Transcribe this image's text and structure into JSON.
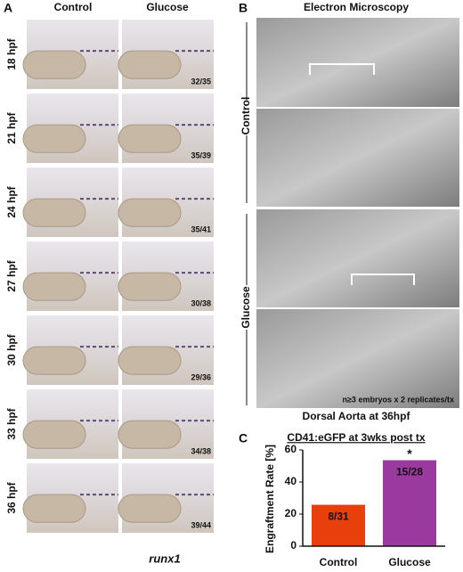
{
  "panel_a": {
    "label": "A",
    "columns": [
      "Control",
      "Glucose"
    ],
    "rows": [
      {
        "time": "18 hpf",
        "ratio": "32/35"
      },
      {
        "time": "21 hpf",
        "ratio": "35/39"
      },
      {
        "time": "24 hpf",
        "ratio": "35/41"
      },
      {
        "time": "27 hpf",
        "ratio": "30/38"
      },
      {
        "time": "30 hpf",
        "ratio": "29/36"
      },
      {
        "time": "33 hpf",
        "ratio": "34/38"
      },
      {
        "time": "36 hpf",
        "ratio": "39/44"
      }
    ],
    "gene": "runx1"
  },
  "panel_b": {
    "label": "B",
    "title": "Electron Microscopy",
    "groups": [
      "Control",
      "Glucose"
    ],
    "note": "n≥3 embryos x 2 replicates/tx",
    "caption": "Dorsal Aorta at 36hpf"
  },
  "chart_data": {
    "type": "bar",
    "label": "C",
    "title": "CD41:eGFP at 3wks post tx",
    "y_label": "Engraftment Rate [%]",
    "categories": [
      "Control",
      "Glucose"
    ],
    "values": [
      25.8,
      53.6
    ],
    "value_labels": [
      "8/31",
      "15/28"
    ],
    "colors": [
      "#e8400c",
      "#9b3a9e"
    ],
    "ylim": [
      0,
      60
    ],
    "yticks": [
      0,
      20,
      40,
      60
    ],
    "annotation": "*"
  }
}
